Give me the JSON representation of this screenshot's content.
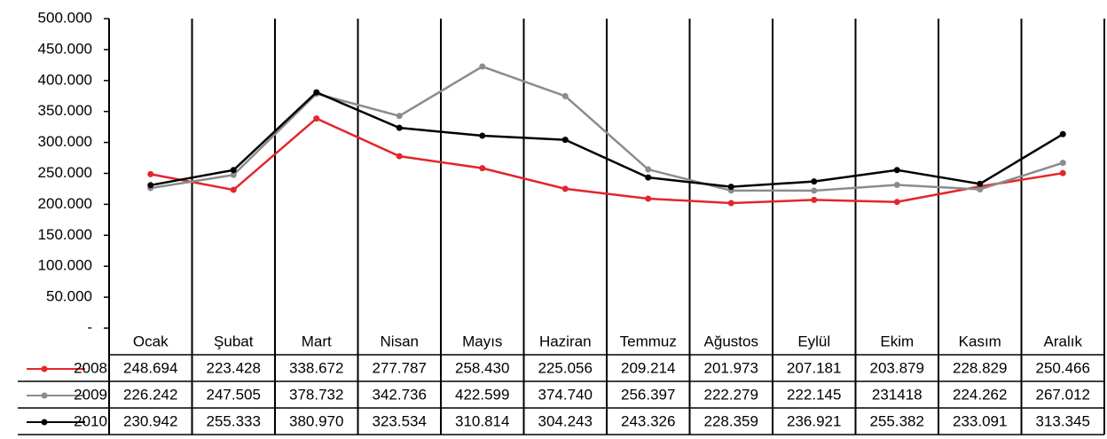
{
  "chart_data": {
    "type": "line",
    "categories": [
      "Ocak",
      "Şubat",
      "Mart",
      "Nisan",
      "Mayıs",
      "Haziran",
      "Temmuz",
      "Ağustos",
      "Eylül",
      "Ekim",
      "Kasım",
      "Aralık"
    ],
    "series": [
      {
        "name": "2008",
        "color": "#e3262b",
        "values": [
          248694,
          223428,
          338672,
          277787,
          258430,
          225056,
          209214,
          201973,
          207181,
          203879,
          228829,
          250466
        ],
        "value_labels": [
          "248.694",
          "223.428",
          "338.672",
          "277.787",
          "258.430",
          "225.056",
          "209.214",
          "201.973",
          "207.181",
          "203.879",
          "228.829",
          "250.466"
        ]
      },
      {
        "name": "2009",
        "color": "#8c8c8c",
        "values": [
          226242,
          247505,
          378732,
          342736,
          422599,
          374740,
          256397,
          222279,
          222145,
          231418,
          224262,
          267012
        ],
        "value_labels": [
          "226.242",
          "247.505",
          "378.732",
          "342.736",
          "422.599",
          "374.740",
          "256.397",
          "222.279",
          "222.145",
          "231418",
          "224.262",
          "267.012"
        ]
      },
      {
        "name": "2010",
        "color": "#000000",
        "values": [
          230942,
          255333,
          380970,
          323534,
          310814,
          304243,
          243326,
          228359,
          236921,
          255382,
          233091,
          313345
        ],
        "value_labels": [
          "230.942",
          "255.333",
          "380.970",
          "323.534",
          "310.814",
          "304.243",
          "243.326",
          "228.359",
          "236.921",
          "255.382",
          "233.091",
          "313.345"
        ]
      }
    ],
    "ylim": [
      0,
      500000
    ],
    "yticks": [
      {
        "value": 0,
        "label": "-"
      },
      {
        "value": 50000,
        "label": "50.000"
      },
      {
        "value": 100000,
        "label": "100.000"
      },
      {
        "value": 150000,
        "label": "150.000"
      },
      {
        "value": 200000,
        "label": "200.000"
      },
      {
        "value": 250000,
        "label": "250.000"
      },
      {
        "value": 300000,
        "label": "300.000"
      },
      {
        "value": 350000,
        "label": "350.000"
      },
      {
        "value": 400000,
        "label": "400.000"
      },
      {
        "value": 450000,
        "label": "450.000"
      },
      {
        "value": 500000,
        "label": "500.000"
      }
    ],
    "grid": false
  }
}
